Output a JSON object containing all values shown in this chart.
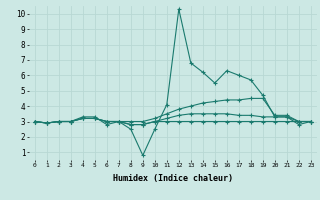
{
  "xlabel": "Humidex (Indice chaleur)",
  "ylabel": "",
  "bg_color": "#cce8e4",
  "grid_color": "#b8d8d4",
  "line_color": "#1a7a6e",
  "xlim": [
    -0.5,
    23.5
  ],
  "ylim": [
    0.5,
    10.5
  ],
  "xticks": [
    0,
    1,
    2,
    3,
    4,
    5,
    6,
    7,
    8,
    9,
    10,
    11,
    12,
    13,
    14,
    15,
    16,
    17,
    18,
    19,
    20,
    21,
    22,
    23
  ],
  "yticks": [
    1,
    2,
    3,
    4,
    5,
    6,
    7,
    8,
    9,
    10
  ],
  "series": [
    [
      3.0,
      2.9,
      3.0,
      3.0,
      3.3,
      3.3,
      2.8,
      3.0,
      2.5,
      0.8,
      2.5,
      4.1,
      10.3,
      6.8,
      6.2,
      5.5,
      6.3,
      6.0,
      5.7,
      4.7,
      3.3,
      3.3,
      2.8,
      3.0
    ],
    [
      3.0,
      2.9,
      3.0,
      3.0,
      3.2,
      3.2,
      3.0,
      3.0,
      3.0,
      3.0,
      3.2,
      3.5,
      3.8,
      4.0,
      4.2,
      4.3,
      4.4,
      4.4,
      4.5,
      4.5,
      3.4,
      3.4,
      3.0,
      3.0
    ],
    [
      3.0,
      2.9,
      3.0,
      3.0,
      3.2,
      3.2,
      3.0,
      3.0,
      2.8,
      2.8,
      3.0,
      3.2,
      3.4,
      3.5,
      3.5,
      3.5,
      3.5,
      3.4,
      3.4,
      3.3,
      3.3,
      3.3,
      3.0,
      3.0
    ],
    [
      3.0,
      2.9,
      3.0,
      3.0,
      3.2,
      3.2,
      3.0,
      3.0,
      2.8,
      2.8,
      3.0,
      3.0,
      3.0,
      3.0,
      3.0,
      3.0,
      3.0,
      3.0,
      3.0,
      3.0,
      3.0,
      3.0,
      3.0,
      3.0
    ]
  ]
}
